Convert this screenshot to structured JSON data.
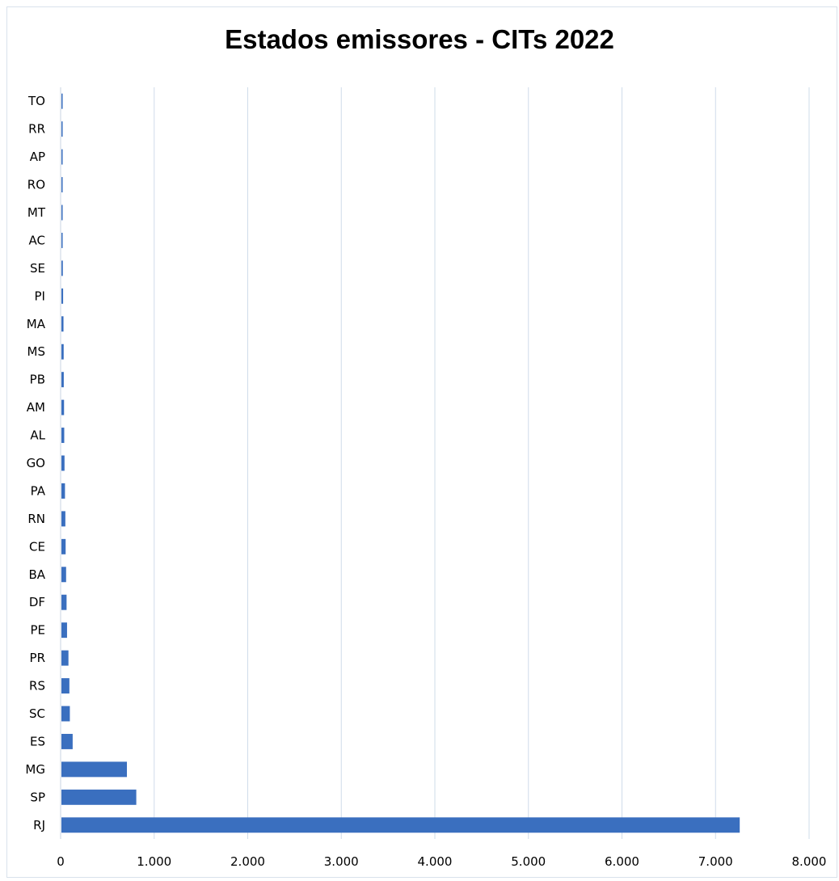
{
  "chart_data": {
    "type": "bar",
    "orientation": "horizontal",
    "title": "Estados emissores - CITs 2022",
    "xlabel": "",
    "ylabel": "",
    "categories": [
      "RJ",
      "SP",
      "MG",
      "ES",
      "SC",
      "RS",
      "PR",
      "PE",
      "DF",
      "BA",
      "CE",
      "RN",
      "PA",
      "GO",
      "AL",
      "AM",
      "PB",
      "MS",
      "MA",
      "PI",
      "SE",
      "AC",
      "MT",
      "RO",
      "AP",
      "RR",
      "TO"
    ],
    "values": [
      7250,
      800,
      700,
      120,
      90,
      85,
      75,
      60,
      55,
      50,
      45,
      42,
      38,
      33,
      30,
      28,
      25,
      24,
      22,
      18,
      15,
      12,
      11,
      10,
      3,
      2,
      1
    ],
    "xlim": [
      0,
      8000
    ],
    "xticks": [
      0,
      1000,
      2000,
      3000,
      4000,
      5000,
      6000,
      7000,
      8000
    ],
    "xtick_labels": [
      "0",
      "1.000",
      "2.000",
      "3.000",
      "4.000",
      "5.000",
      "6.000",
      "7.000",
      "8.000"
    ],
    "grid": "vertical",
    "legend": "none",
    "bar_color": "#3a6fbf"
  }
}
